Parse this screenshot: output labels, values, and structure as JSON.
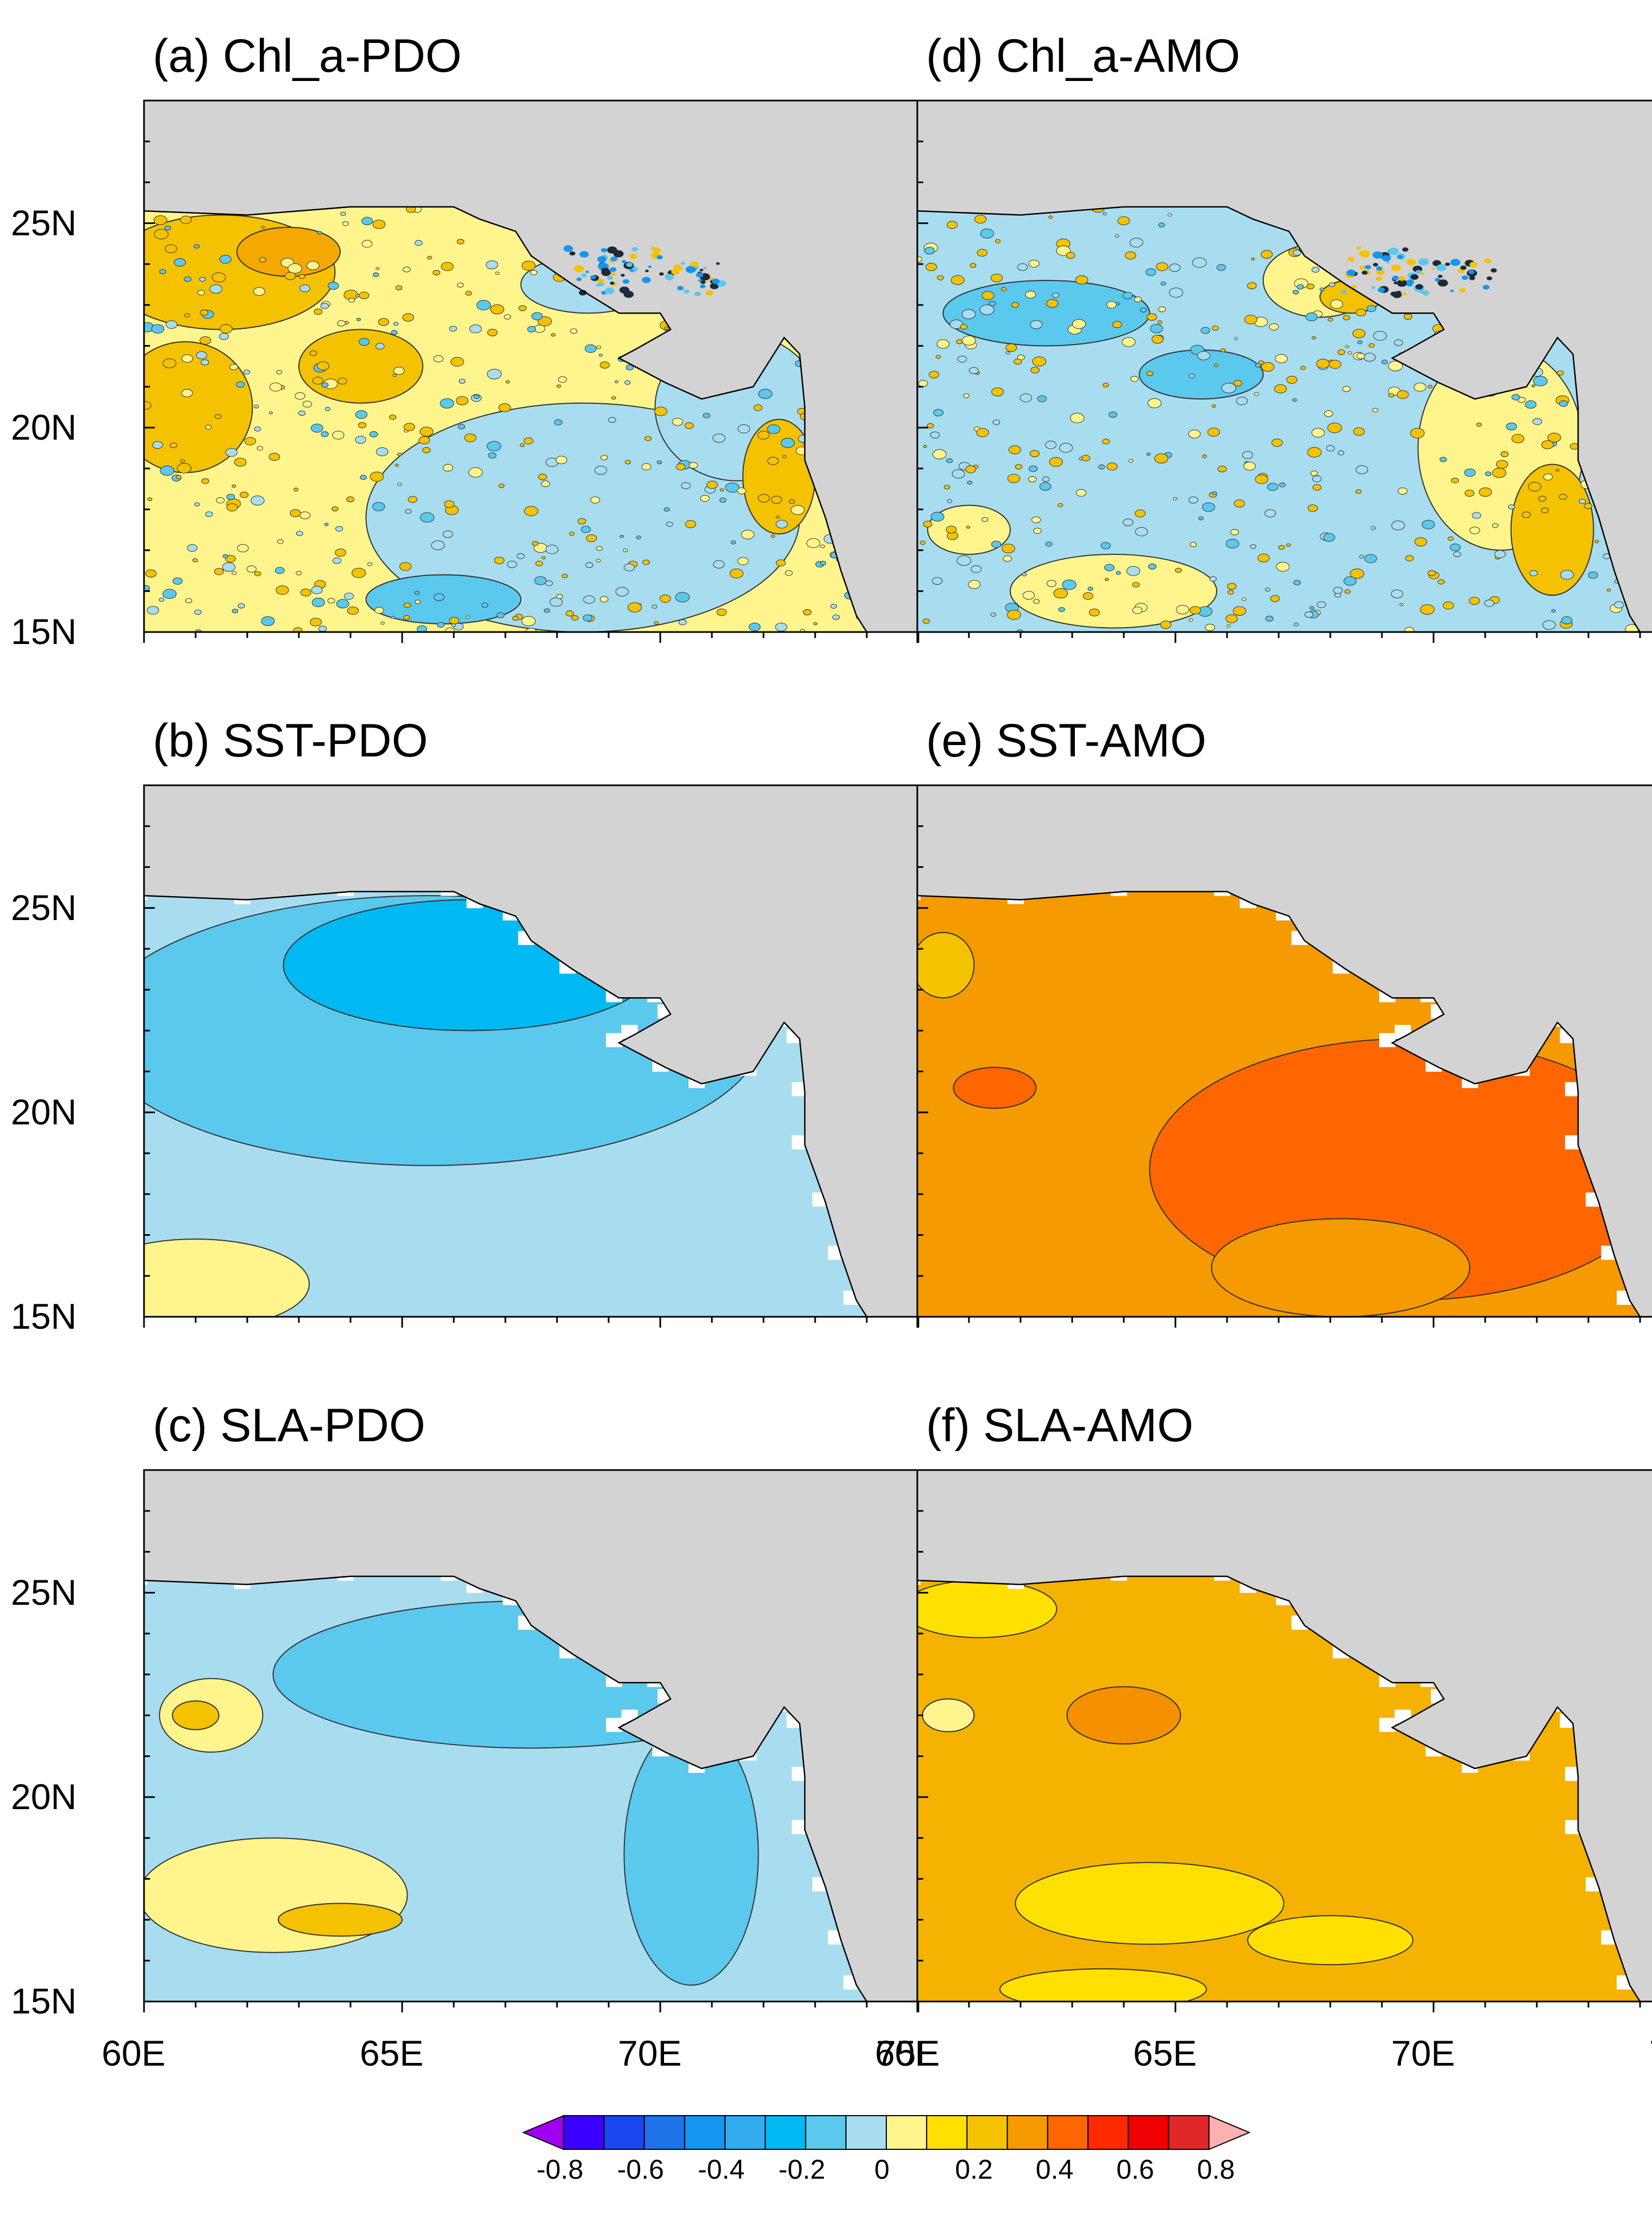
{
  "panels": [
    {
      "title": "(a) Chl_a-PDO",
      "variable": "Chl_a",
      "index": "PDO",
      "base_color": "#FFF58C",
      "texture": "speckle",
      "patches": [
        {
          "c": "#F5C200",
          "x": 61.5,
          "y": 23.8,
          "rx": 2.2,
          "ry": 1.4
        },
        {
          "c": "#F5C200",
          "x": 60.8,
          "y": 20.5,
          "rx": 1.3,
          "ry": 1.6
        },
        {
          "c": "#F5A800",
          "x": 62.8,
          "y": 24.3,
          "rx": 1.0,
          "ry": 0.6
        },
        {
          "c": "#A8DDF0",
          "x": 68.5,
          "y": 17.8,
          "rx": 4.2,
          "ry": 2.8
        },
        {
          "c": "#A8DDF0",
          "x": 71.5,
          "y": 20.5,
          "rx": 1.6,
          "ry": 1.8
        },
        {
          "c": "#A8DDF0",
          "x": 68.6,
          "y": 23.5,
          "rx": 1.3,
          "ry": 0.7
        },
        {
          "c": "#5BC8EE",
          "x": 65.8,
          "y": 15.8,
          "rx": 1.5,
          "ry": 0.6
        },
        {
          "c": "#F5C200",
          "x": 72.3,
          "y": 18.8,
          "rx": 0.7,
          "ry": 1.4
        },
        {
          "c": "#F5C200",
          "x": 64.2,
          "y": 21.5,
          "rx": 1.2,
          "ry": 0.9
        }
      ]
    },
    {
      "title": "(d) Chl_a-AMO",
      "variable": "Chl_a",
      "index": "AMO",
      "base_color": "#A8DDF0",
      "texture": "speckle",
      "patches": [
        {
          "c": "#5BC8EE",
          "x": 62.5,
          "y": 22.8,
          "rx": 2.0,
          "ry": 0.8
        },
        {
          "c": "#5BC8EE",
          "x": 65.5,
          "y": 21.3,
          "rx": 1.2,
          "ry": 0.6
        },
        {
          "c": "#FFF58C",
          "x": 71.3,
          "y": 19.5,
          "rx": 1.6,
          "ry": 2.5
        },
        {
          "c": "#F5C200",
          "x": 72.3,
          "y": 17.5,
          "rx": 0.8,
          "ry": 1.6
        },
        {
          "c": "#FFF58C",
          "x": 63.8,
          "y": 16.0,
          "rx": 2.0,
          "ry": 0.9
        },
        {
          "c": "#FFF58C",
          "x": 67.8,
          "y": 23.6,
          "rx": 1.1,
          "ry": 0.9
        },
        {
          "c": "#F5C200",
          "x": 68.4,
          "y": 23.2,
          "rx": 0.6,
          "ry": 0.4
        },
        {
          "c": "#FFF58C",
          "x": 61.0,
          "y": 17.5,
          "rx": 0.8,
          "ry": 0.6
        }
      ]
    },
    {
      "title": "(b) SST-PDO",
      "variable": "SST",
      "index": "PDO",
      "base_color": "#A8DDF0",
      "texture": "smooth",
      "patches": [
        {
          "c": "#5BC8EE",
          "x": 65.5,
          "y": 22.0,
          "rx": 6.5,
          "ry": 3.3
        },
        {
          "c": "#00B9F2",
          "x": 66.3,
          "y": 23.6,
          "rx": 3.6,
          "ry": 1.6
        },
        {
          "c": "#FFF58C",
          "x": 61.0,
          "y": 15.8,
          "rx": 2.2,
          "ry": 1.1
        }
      ]
    },
    {
      "title": "(e) SST-AMO",
      "variable": "SST",
      "index": "AMO",
      "base_color": "#F59A00",
      "texture": "smooth",
      "patches": [
        {
          "c": "#FF6600",
          "x": 69.5,
          "y": 18.6,
          "rx": 5.0,
          "ry": 3.2
        },
        {
          "c": "#F59A00",
          "x": 68.2,
          "y": 16.2,
          "rx": 2.5,
          "ry": 1.2
        },
        {
          "c": "#FF6600",
          "x": 61.5,
          "y": 20.6,
          "rx": 0.8,
          "ry": 0.5
        },
        {
          "c": "#F5C200",
          "x": 60.5,
          "y": 23.6,
          "rx": 0.6,
          "ry": 0.8
        }
      ]
    },
    {
      "title": "(c) SLA-PDO",
      "variable": "SLA",
      "index": "PDO",
      "base_color": "#A8DDF0",
      "texture": "smooth",
      "patches": [
        {
          "c": "#5BC8EE",
          "x": 67.5,
          "y": 23.0,
          "rx": 5.0,
          "ry": 1.8
        },
        {
          "c": "#5BC8EE",
          "x": 70.6,
          "y": 18.6,
          "rx": 1.3,
          "ry": 3.2
        },
        {
          "c": "#FFF58C",
          "x": 61.3,
          "y": 22.0,
          "rx": 1.0,
          "ry": 0.9
        },
        {
          "c": "#F5C200",
          "x": 61.0,
          "y": 22.0,
          "rx": 0.45,
          "ry": 0.35
        },
        {
          "c": "#FFF58C",
          "x": 62.5,
          "y": 17.6,
          "rx": 2.6,
          "ry": 1.4
        },
        {
          "c": "#F5C200",
          "x": 63.8,
          "y": 17.0,
          "rx": 1.2,
          "ry": 0.4
        }
      ]
    },
    {
      "title": "(f) SLA-AMO",
      "variable": "SLA",
      "index": "AMO",
      "base_color": "#F5B200",
      "texture": "smooth",
      "patches": [
        {
          "c": "#FFE000",
          "x": 61.2,
          "y": 24.6,
          "rx": 1.5,
          "ry": 0.7
        },
        {
          "c": "#FFE000",
          "x": 64.5,
          "y": 17.4,
          "rx": 2.6,
          "ry": 1.0
        },
        {
          "c": "#FFE000",
          "x": 68.0,
          "y": 16.5,
          "rx": 1.6,
          "ry": 0.6
        },
        {
          "c": "#F59000",
          "x": 64.0,
          "y": 22.0,
          "rx": 1.1,
          "ry": 0.7
        },
        {
          "c": "#FFF58C",
          "x": 60.6,
          "y": 22.0,
          "rx": 0.5,
          "ry": 0.4
        },
        {
          "c": "#FFE000",
          "x": 63.6,
          "y": 15.3,
          "rx": 2.0,
          "ry": 0.5
        }
      ]
    }
  ],
  "axes": {
    "lat_labels": [
      "15N",
      "20N",
      "25N"
    ],
    "lat_values": [
      15,
      20,
      25
    ],
    "lon_labels": [
      "60E",
      "65E",
      "70E",
      "75E"
    ],
    "lon_values": [
      60,
      65,
      70,
      75
    ],
    "lon_range": [
      60,
      75
    ],
    "lat_range": [
      15,
      28
    ]
  },
  "land": {
    "color": "#D3D3D3",
    "coast": [
      [
        60,
        25.3
      ],
      [
        62,
        25.2
      ],
      [
        64,
        25.4
      ],
      [
        66,
        25.4
      ],
      [
        66.5,
        25.1
      ],
      [
        67.2,
        24.8
      ],
      [
        67.5,
        24.2
      ],
      [
        68.3,
        23.5
      ],
      [
        69.2,
        22.8
      ],
      [
        70,
        22.8
      ],
      [
        70.2,
        22.4
      ],
      [
        69.5,
        21.9
      ],
      [
        69.2,
        21.7
      ],
      [
        70.1,
        21.1
      ],
      [
        70.8,
        20.7
      ],
      [
        71.8,
        21.0
      ],
      [
        72.4,
        22.2
      ],
      [
        72.7,
        21.8
      ],
      [
        72.8,
        20.5
      ],
      [
        72.8,
        19.2
      ],
      [
        73.2,
        17.8
      ],
      [
        73.5,
        16.5
      ],
      [
        73.8,
        15.4
      ],
      [
        74.0,
        15.0
      ]
    ]
  },
  "ocean_mask_color": "#FFFFFF",
  "colorbar": {
    "levels": [
      -0.8,
      -0.7,
      -0.6,
      -0.5,
      -0.4,
      -0.3,
      -0.2,
      -0.1,
      0,
      0.1,
      0.2,
      0.3,
      0.4,
      0.5,
      0.6,
      0.7,
      0.8
    ],
    "colors": [
      "#A000F0",
      "#3A00FF",
      "#1A46F0",
      "#1E73E8",
      "#1496F0",
      "#32AAF0",
      "#00B9F2",
      "#5BC8EE",
      "#A8DDF0",
      "#FFF58C",
      "#FFE000",
      "#F5C200",
      "#F59A00",
      "#FF6600",
      "#FF2A00",
      "#F00000",
      "#E02828",
      "#FFB0B0"
    ],
    "tick_labels": [
      "-0.8",
      "-0.6",
      "-0.4",
      "-0.2",
      "0",
      "0.2",
      "0.4",
      "0.6",
      "0.8"
    ],
    "tick_values": [
      -0.8,
      -0.6,
      -0.4,
      -0.2,
      0,
      0.2,
      0.4,
      0.6,
      0.8
    ]
  }
}
